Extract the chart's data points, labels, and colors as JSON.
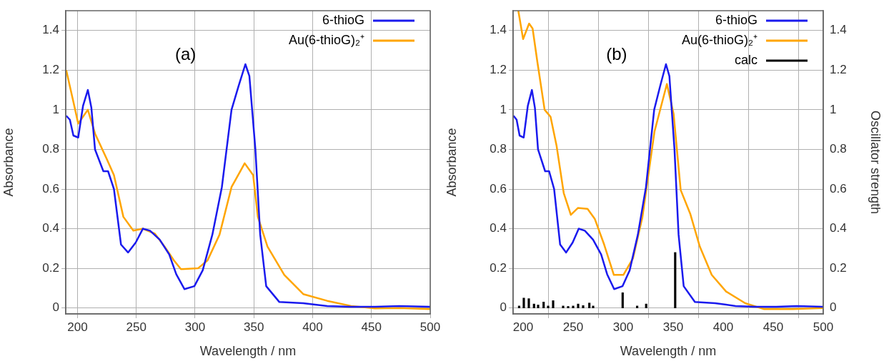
{
  "chart_data": [
    {
      "type": "line",
      "xlabel": "Wavelength / nm",
      "ylabel": "Absorbance",
      "annotations": [
        "(a)"
      ],
      "xlim": [
        190,
        500
      ],
      "ylim": [
        -0.03,
        1.5
      ],
      "xticks": [
        200,
        250,
        300,
        350,
        400,
        450,
        500
      ],
      "yticks": [
        0,
        0.2,
        0.4,
        0.6,
        0.8,
        1,
        1.2,
        1.4
      ],
      "grid": true,
      "legend": "top right",
      "marker": "none",
      "line_style": "solid",
      "series": [
        {
          "name": "6-thioG",
          "color": "#1a1aee",
          "x": [
            190.4,
            193.5,
            196.5,
            200.6,
            204.7,
            208.8,
            211.8,
            214.9,
            222,
            226,
            231,
            237,
            243,
            249.5,
            255.6,
            261.7,
            269.9,
            278,
            284,
            291,
            299.4,
            306.5,
            314.7,
            322.8,
            331,
            337,
            342.8,
            346.2,
            351.3,
            355.4,
            360.5,
            371.7,
            392,
            412.4,
            432.8,
            453,
            473.5,
            500
          ],
          "values": [
            0.97,
            0.95,
            0.87,
            0.86,
            1.02,
            1.1,
            1.01,
            0.8,
            0.69,
            0.69,
            0.6,
            0.32,
            0.28,
            0.33,
            0.4,
            0.39,
            0.345,
            0.27,
            0.17,
            0.095,
            0.11,
            0.19,
            0.37,
            0.61,
            1.0,
            1.12,
            1.23,
            1.17,
            0.8,
            0.37,
            0.11,
            0.03,
            0.024,
            0.01,
            0.006,
            0.006,
            0.01,
            0.006
          ]
        },
        {
          "name": "Au(6-thioG)₂⁺",
          "color": "#ffa500",
          "x": [
            190.4,
            196.5,
            200.6,
            208.8,
            214.9,
            225,
            231,
            239,
            247.5,
            255.6,
            265.8,
            274,
            282,
            288,
            302.5,
            310.6,
            320.8,
            331,
            342.2,
            349.4,
            353.4,
            361.6,
            375.9,
            392,
            412.4,
            432.8,
            453,
            473.5,
            500
          ],
          "values": [
            1.2,
            1.04,
            0.93,
            1.0,
            0.88,
            0.75,
            0.67,
            0.46,
            0.39,
            0.4,
            0.375,
            0.31,
            0.24,
            0.196,
            0.2,
            0.24,
            0.37,
            0.61,
            0.73,
            0.67,
            0.46,
            0.31,
            0.167,
            0.07,
            0.036,
            0.01,
            -0.002,
            0,
            -0.006
          ]
        }
      ]
    },
    {
      "type": "line",
      "xlabel": "Wavelength / nm",
      "ylabel": "Absorbance",
      "y2label": "Oscillator strength",
      "annotations": [
        "(b)"
      ],
      "xlim": [
        190,
        500
      ],
      "ylim": [
        -0.03,
        1.5
      ],
      "y2lim": [
        -0.03,
        1.5
      ],
      "xticks": [
        200,
        250,
        300,
        350,
        400,
        450,
        500
      ],
      "yticks": [
        0,
        0.2,
        0.4,
        0.6,
        0.8,
        1,
        1.2,
        1.4
      ],
      "y2ticks": [
        0,
        0.2,
        0.4,
        0.6,
        0.8,
        1,
        1.2,
        1.4
      ],
      "grid": true,
      "legend": "top right",
      "marker": "none",
      "line_style": "solid",
      "series": [
        {
          "name": "6-thioG",
          "color": "#1a1aee",
          "x": [
            190.4,
            193.5,
            196.5,
            200.6,
            204.7,
            208.8,
            211.8,
            214.9,
            222,
            226,
            231,
            237,
            243,
            249.5,
            255.6,
            261.7,
            269.9,
            278,
            284,
            291,
            299.4,
            306.5,
            314.7,
            322.8,
            331,
            337,
            342.8,
            346.2,
            351.3,
            355.4,
            360.5,
            371.7,
            392,
            412.4,
            432.8,
            453,
            473.5,
            500
          ],
          "values": [
            0.97,
            0.95,
            0.87,
            0.86,
            1.02,
            1.1,
            1.01,
            0.8,
            0.69,
            0.69,
            0.6,
            0.32,
            0.28,
            0.33,
            0.4,
            0.39,
            0.345,
            0.27,
            0.17,
            0.095,
            0.11,
            0.19,
            0.37,
            0.61,
            1.0,
            1.12,
            1.23,
            1.17,
            0.8,
            0.37,
            0.11,
            0.03,
            0.024,
            0.01,
            0.006,
            0.006,
            0.01,
            0.006
          ]
        },
        {
          "name": "Au(6-thioG)₂⁺",
          "color": "#ffa500",
          "x": [
            195.2,
            200,
            206,
            209.5,
            214.3,
            221.5,
            227.4,
            233.4,
            240.6,
            247.7,
            254.9,
            264.4,
            271.6,
            281,
            290.7,
            300.2,
            309.8,
            319.3,
            331.3,
            343.7,
            350.4,
            357.5,
            367,
            376.6,
            388.5,
            402.9,
            422,
            441,
            469.7,
            500
          ],
          "values": [
            1.5,
            1.357,
            1.435,
            1.41,
            1.24,
            1.0,
            0.965,
            0.82,
            0.58,
            0.47,
            0.505,
            0.5,
            0.45,
            0.32,
            0.167,
            0.167,
            0.25,
            0.46,
            0.89,
            1.13,
            0.98,
            0.595,
            0.476,
            0.31,
            0.167,
            0.083,
            0.024,
            -0.006,
            -0.006,
            0
          ]
        },
        {
          "name": "calc",
          "type": "bar",
          "axis": "y2",
          "color": "#000000",
          "x": [
            196,
            200.7,
            205.7,
            210.9,
            215,
            220.5,
            225,
            230,
            240,
            245,
            250,
            255,
            260,
            266.2,
            270,
            299.5,
            314,
            323,
            352
          ],
          "values": [
            0.01,
            0.05,
            0.047,
            0.02,
            0.015,
            0.03,
            0.01,
            0.037,
            0.01,
            0.008,
            0.01,
            0.02,
            0.012,
            0.025,
            0.01,
            0.077,
            0.01,
            0.02,
            0.28
          ]
        }
      ]
    }
  ]
}
